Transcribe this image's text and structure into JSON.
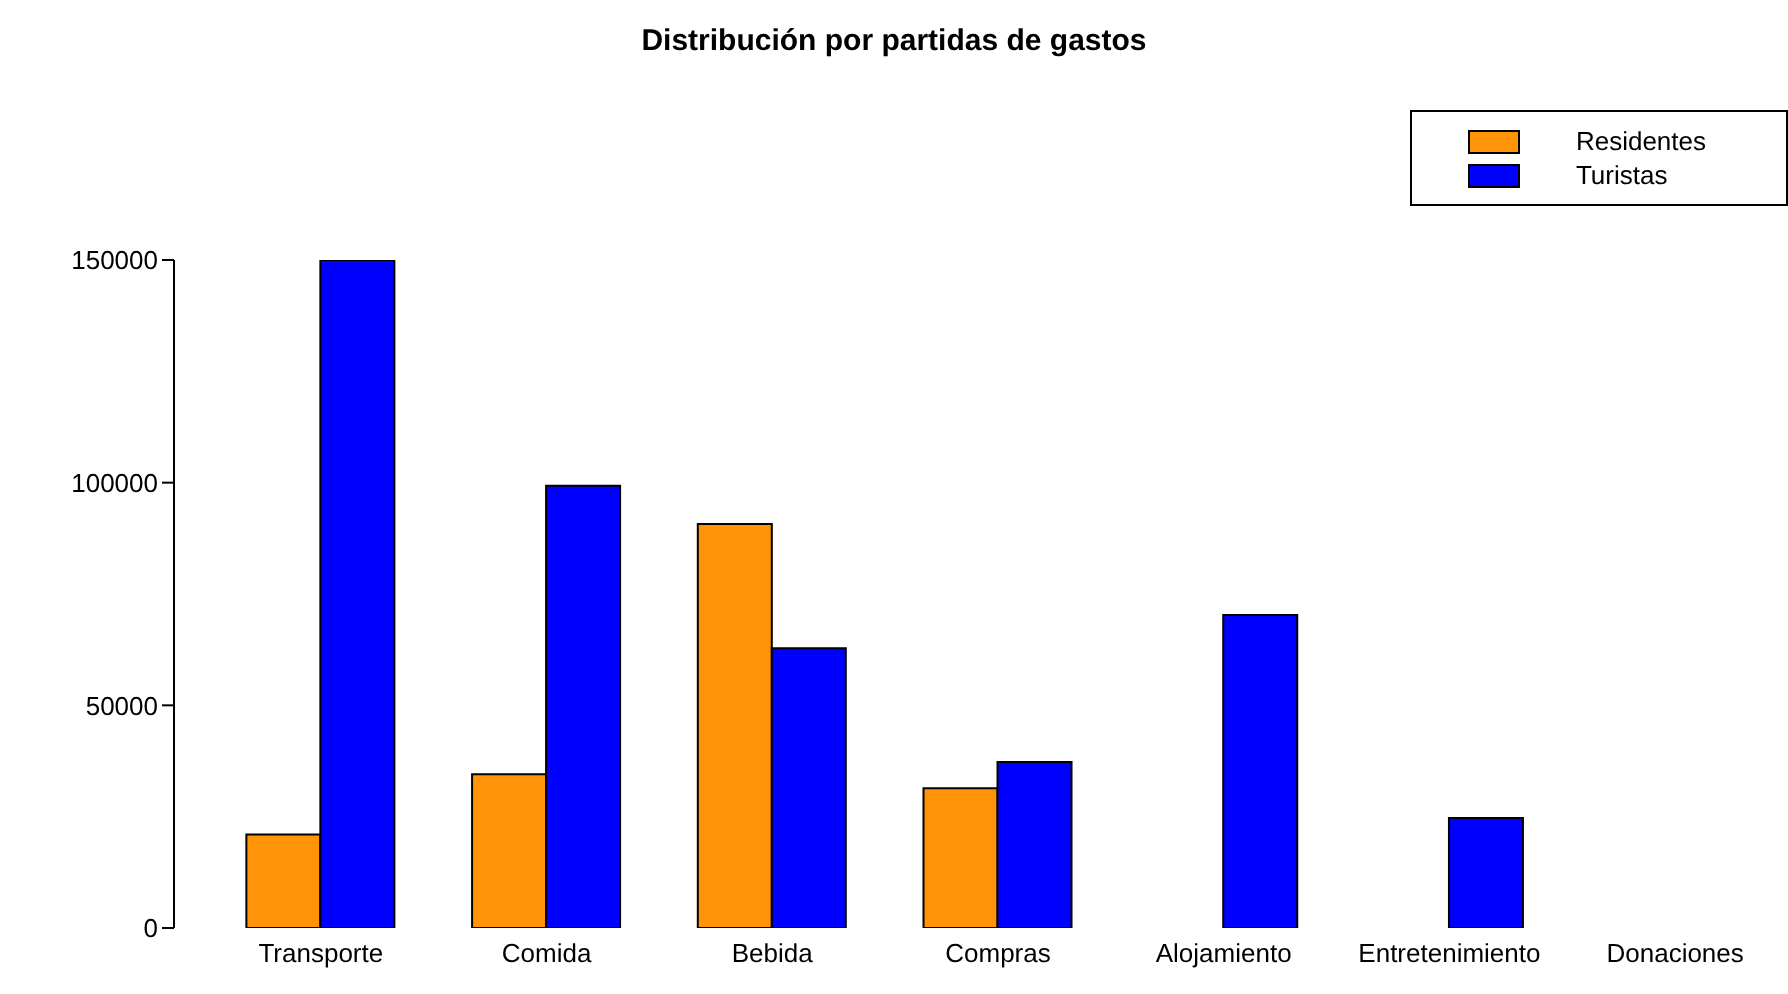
{
  "chart_data": {
    "type": "bar",
    "title": "Distribución por partidas de gastos",
    "categories": [
      "Transporte",
      "Comida",
      "Bebida",
      "Compras",
      "Alojamiento",
      "Entretenimiento",
      "Donaciones"
    ],
    "series": [
      {
        "name": "Residentes",
        "color": "#ff9408",
        "values": [
          21000,
          34500,
          90700,
          31400,
          0,
          0,
          0
        ]
      },
      {
        "name": "Turistas",
        "color": "#0000ff",
        "values": [
          150000,
          99300,
          62800,
          37300,
          70300,
          24700,
          0
        ]
      }
    ],
    "ylim": [
      0,
      150000
    ],
    "yticks": [
      0,
      50000,
      100000,
      150000
    ],
    "legend": "top right"
  }
}
